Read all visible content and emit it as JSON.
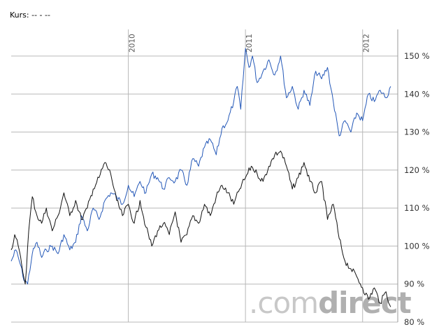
{
  "header": {
    "label": "Kurs:",
    "value": "-- - --"
  },
  "watermark": {
    "part1": ".com",
    "part2": "direct"
  },
  "colors": {
    "series_blue": "#2458b8",
    "series_black": "#111111",
    "grid": "#b8b8b8",
    "watermark_light": "#c8c8c8",
    "watermark_dark": "#b0b0b0"
  },
  "chart_data": {
    "type": "line",
    "ylim": [
      80,
      157
    ],
    "yticks": [
      80,
      90,
      100,
      110,
      120,
      130,
      140,
      150
    ],
    "ytick_labels": [
      "80 %",
      "90 %",
      "100 %",
      "110 %",
      "120 %",
      "130 %",
      "140 %",
      "150 %"
    ],
    "xlim": [
      2009.0,
      2012.3
    ],
    "years": [
      {
        "label": "2010",
        "x": 2010.0
      },
      {
        "label": "2011",
        "x": 2011.0
      },
      {
        "label": "2012",
        "x": 2012.0
      }
    ],
    "grid": true,
    "series": [
      {
        "color": "#2458b8",
        "x": [
          2009.0,
          2009.04,
          2009.08,
          2009.1,
          2009.14,
          2009.18,
          2009.22,
          2009.26,
          2009.3,
          2009.35,
          2009.4,
          2009.45,
          2009.5,
          2009.55,
          2009.6,
          2009.65,
          2009.7,
          2009.75,
          2009.8,
          2009.85,
          2009.9,
          2009.95,
          2010.0,
          2010.05,
          2010.1,
          2010.15,
          2010.2,
          2010.25,
          2010.3,
          2010.35,
          2010.4,
          2010.45,
          2010.5,
          2010.55,
          2010.6,
          2010.65,
          2010.7,
          2010.75,
          2010.8,
          2010.85,
          2010.9,
          2010.93,
          2010.96,
          2011.0,
          2011.03,
          2011.06,
          2011.1,
          2011.15,
          2011.2,
          2011.25,
          2011.3,
          2011.35,
          2011.4,
          2011.45,
          2011.5,
          2011.55,
          2011.6,
          2011.65,
          2011.7,
          2011.75,
          2011.8,
          2011.85,
          2011.9,
          2011.95,
          2012.0,
          2012.05,
          2012.1,
          2012.15,
          2012.2,
          2012.24
        ],
        "y": [
          96,
          99,
          95,
          92,
          90,
          98,
          101,
          97,
          99,
          100,
          98,
          103,
          99,
          101,
          108,
          104,
          110,
          107,
          112,
          114,
          113,
          111,
          116,
          113,
          117,
          114,
          119,
          118,
          115,
          118,
          117,
          120,
          116,
          123,
          121,
          126,
          128,
          124,
          131,
          133,
          138,
          142,
          136,
          152,
          147,
          150,
          143,
          146,
          149,
          145,
          150,
          139,
          142,
          136,
          141,
          137,
          146,
          144,
          147,
          138,
          129,
          133,
          130,
          135,
          133,
          140,
          138,
          141,
          139,
          142
        ]
      },
      {
        "color": "#111111",
        "x": [
          2009.0,
          2009.03,
          2009.06,
          2009.09,
          2009.12,
          2009.15,
          2009.18,
          2009.22,
          2009.26,
          2009.3,
          2009.35,
          2009.4,
          2009.45,
          2009.5,
          2009.55,
          2009.6,
          2009.65,
          2009.7,
          2009.75,
          2009.8,
          2009.85,
          2009.9,
          2009.95,
          2010.0,
          2010.05,
          2010.1,
          2010.15,
          2010.2,
          2010.25,
          2010.3,
          2010.35,
          2010.4,
          2010.45,
          2010.5,
          2010.55,
          2010.6,
          2010.65,
          2010.7,
          2010.75,
          2010.8,
          2010.85,
          2010.9,
          2010.95,
          2011.0,
          2011.05,
          2011.1,
          2011.15,
          2011.2,
          2011.25,
          2011.3,
          2011.35,
          2011.4,
          2011.45,
          2011.5,
          2011.55,
          2011.6,
          2011.65,
          2011.7,
          2011.75,
          2011.8,
          2011.85,
          2011.9,
          2011.95,
          2012.0,
          2012.05,
          2012.1,
          2012.15,
          2012.2,
          2012.24
        ],
        "y": [
          99,
          103,
          100,
          95,
          90,
          104,
          113,
          108,
          106,
          110,
          104,
          108,
          114,
          108,
          112,
          107,
          110,
          115,
          118,
          122,
          119,
          112,
          108,
          111,
          106,
          112,
          105,
          100,
          104,
          106,
          103,
          109,
          101,
          103,
          108,
          106,
          111,
          108,
          113,
          116,
          114,
          111,
          115,
          118,
          121,
          119,
          117,
          121,
          124,
          125,
          121,
          115,
          118,
          122,
          117,
          114,
          117,
          107,
          111,
          102,
          96,
          94,
          92,
          89,
          86,
          89,
          85,
          88,
          84
        ]
      }
    ]
  }
}
